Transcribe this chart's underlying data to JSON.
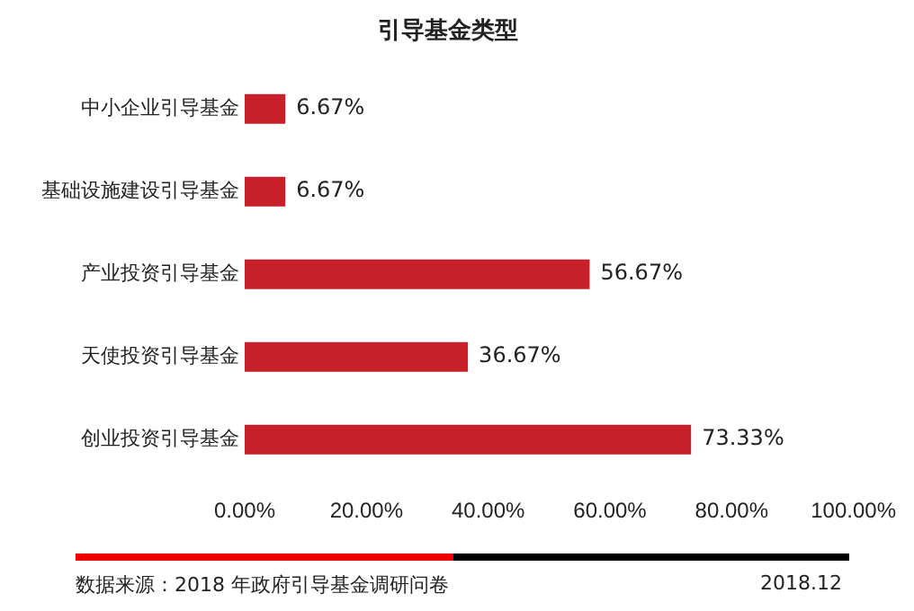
{
  "chart_data": {
    "type": "bar",
    "orientation": "horizontal",
    "title": "引导基金类型",
    "categories": [
      "中小企业引导基金",
      "基础设施建设引导基金",
      "产业投资引导基金",
      "天使投资引导基金",
      "创业投资引导基金"
    ],
    "values": [
      6.67,
      6.67,
      56.67,
      36.67,
      73.33
    ],
    "value_labels": [
      "6.67%",
      "6.67%",
      "56.67%",
      "36.67%",
      "73.33%"
    ],
    "color": "#c8202a",
    "xlim": [
      0,
      100
    ],
    "xticks": [
      {
        "value": 0,
        "label": "0.00%"
      },
      {
        "value": 20,
        "label": "20.00%"
      },
      {
        "value": 40,
        "label": "40.00%"
      },
      {
        "value": 60,
        "label": "60.00%"
      },
      {
        "value": 80,
        "label": "80.00%"
      },
      {
        "value": 100,
        "label": "100.00%"
      }
    ],
    "grid": false,
    "legend": false,
    "annotations": [
      "数据来源：2018 年政府引导基金调研问卷",
      "2018.12"
    ]
  }
}
